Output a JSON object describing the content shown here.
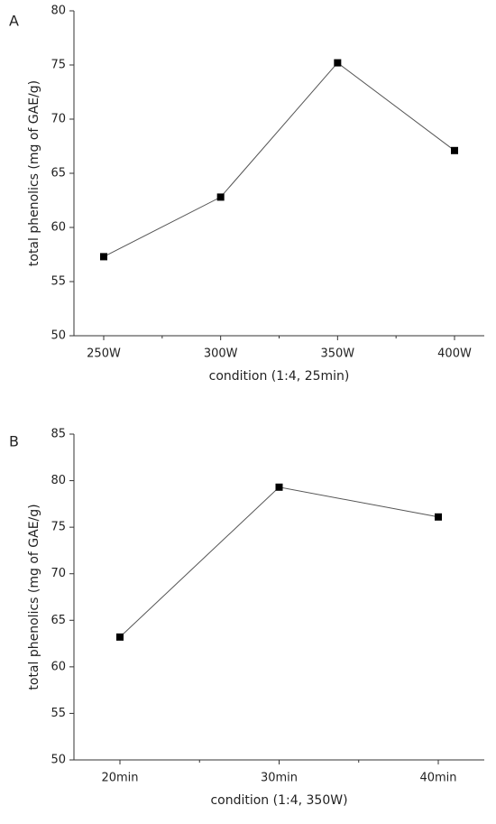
{
  "chart_data": [
    {
      "type": "line",
      "panel_label": "A",
      "x_label": "condition (1:4, 25min)",
      "y_label": "total phenolics (mg of GAE/g)",
      "categories": [
        "250W",
        "300W",
        "350W",
        "400W"
      ],
      "values": [
        57.3,
        62.8,
        75.2,
        67.1
      ],
      "color": "#000000",
      "ylim": [
        50,
        80
      ],
      "yticks": [
        50,
        55,
        60,
        65,
        70,
        75,
        80
      ]
    },
    {
      "type": "line",
      "panel_label": "B",
      "x_label": "condition (1:4, 350W)",
      "y_label": "total phenolics (mg of GAE/g)",
      "categories": [
        "20min",
        "30min",
        "40min"
      ],
      "values": [
        63.2,
        79.3,
        76.1
      ],
      "color": "#000000",
      "ylim": [
        50,
        85
      ],
      "yticks": [
        50,
        55,
        60,
        65,
        70,
        75,
        80,
        85
      ]
    }
  ]
}
